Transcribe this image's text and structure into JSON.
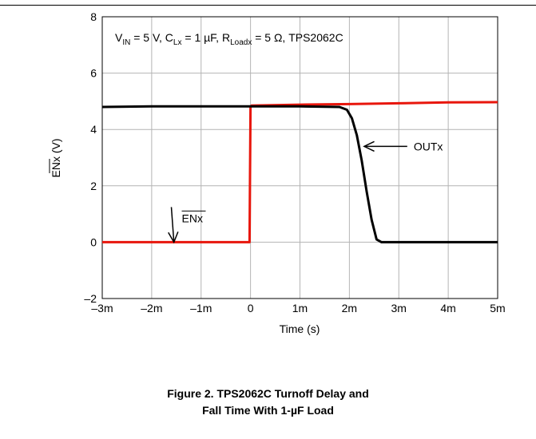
{
  "chart_data": {
    "type": "line",
    "title_annotation": {
      "vin": "V",
      "vin_sub": "IN",
      "vin_rest": " = 5 V, C",
      "cl_sub": "Lx",
      "cl_rest": " = 1 µF, R",
      "rl_sub": "Loadx",
      "rl_rest": " = 5 Ω, TPS2062C"
    },
    "xlabel": "Time (s)",
    "ylabel": "ENx (V)",
    "xlim": [
      -3,
      5
    ],
    "ylim": [
      -2,
      8
    ],
    "x_unit": "ms",
    "xticks": [
      -3,
      -2,
      -1,
      0,
      1,
      2,
      3,
      4,
      5
    ],
    "xtick_labels": [
      "–3m",
      "–2m",
      "–1m",
      "0",
      "1m",
      "2m",
      "3m",
      "4m",
      "5m"
    ],
    "yticks": [
      -2,
      0,
      2,
      4,
      6,
      8
    ],
    "ytick_labels": [
      "–2",
      "0",
      "2",
      "4",
      "6",
      "8"
    ],
    "grid": true,
    "series": [
      {
        "name": "ENx",
        "color": "#e8160c",
        "x": [
          -3,
          -2,
          -1,
          -0.02,
          0,
          0.02,
          1,
          2,
          3,
          4,
          5
        ],
        "y": [
          0.0,
          0.0,
          0.0,
          0.0,
          4.8,
          4.85,
          4.88,
          4.9,
          4.93,
          4.96,
          4.97
        ]
      },
      {
        "name": "OUTx",
        "color": "#000000",
        "x": [
          -3,
          -2,
          -1,
          0,
          1,
          1.8,
          1.95,
          2.05,
          2.15,
          2.25,
          2.35,
          2.45,
          2.55,
          2.65,
          3,
          4,
          5
        ],
        "y": [
          4.8,
          4.82,
          4.82,
          4.82,
          4.82,
          4.8,
          4.7,
          4.4,
          3.8,
          2.9,
          1.8,
          0.8,
          0.1,
          0.0,
          0.0,
          0.0,
          0.0
        ]
      }
    ],
    "annotations": [
      {
        "text": "OUTx",
        "x": 3.3,
        "y": 3.4,
        "arrow_to": [
          2.3,
          3.4
        ]
      },
      {
        "text": "ENx",
        "x": -0.6,
        "y": 0.85,
        "arrow_to": [
          -1.55,
          0.0
        ]
      }
    ]
  },
  "caption": {
    "line1": "Figure 2. TPS2062C Turnoff Delay and",
    "line2": "Fall Time With 1-µF Load"
  }
}
